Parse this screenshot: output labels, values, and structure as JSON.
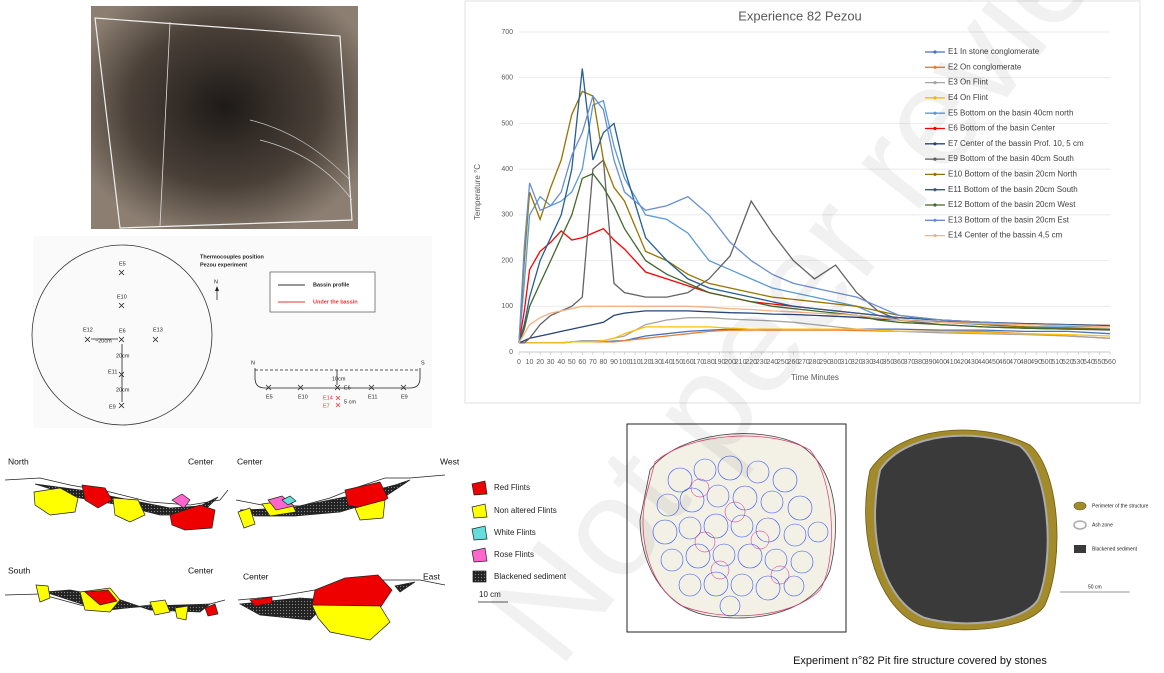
{
  "chart_data": {
    "type": "line",
    "title": "Experience 82 Pezou",
    "x_label": "Time Minutes",
    "y_label": "Temperature °C",
    "x": [
      0,
      5,
      10,
      20,
      30,
      40,
      50,
      60,
      70,
      80,
      90,
      100,
      120,
      140,
      160,
      180,
      200,
      220,
      240,
      260,
      280,
      300,
      320,
      340,
      360,
      400,
      440,
      480,
      520,
      560
    ],
    "xlim": [
      0,
      560
    ],
    "xticks": [
      0,
      10,
      20,
      30,
      40,
      50,
      60,
      70,
      80,
      90,
      100,
      110,
      120,
      130,
      140,
      150,
      160,
      170,
      180,
      190,
      200,
      210,
      220,
      230,
      240,
      250,
      260,
      270,
      280,
      290,
      300,
      310,
      320,
      330,
      340,
      350,
      360,
      370,
      380,
      390,
      400,
      410,
      420,
      430,
      440,
      450,
      460,
      470,
      480,
      490,
      500,
      510,
      520,
      530,
      540,
      550,
      560
    ],
    "ylim": [
      0,
      700
    ],
    "yticks": [
      0,
      100,
      200,
      300,
      400,
      500,
      600,
      700
    ],
    "grid": true,
    "series": [
      {
        "name": "E1 In stone conglomerate",
        "color": "#4472c4",
        "values": [
          20,
          20,
          20,
          20,
          20,
          20,
          22,
          22,
          22,
          22,
          24,
          25,
          35,
          40,
          45,
          48,
          50,
          50,
          50,
          50,
          50,
          50,
          50,
          50,
          50,
          48,
          48,
          45,
          45,
          40
        ]
      },
      {
        "name": "E2 On conglomerate",
        "color": "#ed7d31",
        "values": [
          20,
          20,
          20,
          20,
          20,
          20,
          22,
          22,
          22,
          22,
          22,
          25,
          30,
          35,
          40,
          45,
          48,
          48,
          48,
          48,
          48,
          48,
          47,
          46,
          45,
          45,
          45,
          40,
          35,
          30
        ]
      },
      {
        "name": "E3 On Flint",
        "color": "#a5a5a5",
        "values": [
          20,
          20,
          20,
          20,
          20,
          20,
          22,
          25,
          25,
          25,
          30,
          35,
          60,
          70,
          75,
          75,
          72,
          70,
          68,
          65,
          60,
          55,
          50,
          48,
          45,
          42,
          40,
          38,
          35,
          30
        ]
      },
      {
        "name": "E4 On Flint",
        "color": "#ffc000",
        "values": [
          20,
          20,
          20,
          20,
          20,
          20,
          22,
          22,
          22,
          25,
          30,
          40,
          55,
          55,
          55,
          55,
          52,
          50,
          50,
          50,
          50,
          50,
          50,
          48,
          45,
          45,
          42,
          40,
          38,
          35
        ]
      },
      {
        "name": "E5 Bottom on the basin 40cm north",
        "color": "#5b9bd5",
        "values": [
          20,
          150,
          300,
          340,
          320,
          330,
          350,
          400,
          540,
          550,
          450,
          380,
          300,
          290,
          260,
          200,
          180,
          160,
          140,
          130,
          120,
          110,
          100,
          80,
          70,
          65,
          60,
          55,
          55,
          55
        ]
      },
      {
        "name": "E6 Bottom of the basin Center",
        "color": "#ff0000",
        "values": [
          20,
          90,
          180,
          220,
          240,
          265,
          245,
          250,
          260,
          270,
          245,
          225,
          175,
          160,
          145,
          130,
          120,
          110,
          105,
          100,
          95,
          90,
          85,
          80,
          75,
          70,
          65,
          62,
          60,
          58
        ]
      },
      {
        "name": "E7 Center of the bassin Prof. 10, 5 cm",
        "color": "#264478",
        "values": [
          20,
          25,
          30,
          35,
          40,
          45,
          50,
          55,
          60,
          65,
          80,
          85,
          90,
          90,
          90,
          88,
          86,
          85,
          83,
          82,
          80,
          78,
          76,
          72,
          70,
          66,
          62,
          60,
          58,
          55
        ]
      },
      {
        "name": "E9 Bottom of the basin 40cm South",
        "color": "#636363",
        "values": [
          20,
          20,
          30,
          60,
          80,
          90,
          100,
          120,
          400,
          420,
          150,
          130,
          120,
          120,
          130,
          160,
          210,
          330,
          260,
          200,
          160,
          190,
          130,
          90,
          70,
          60,
          55,
          52,
          50,
          48
        ]
      },
      {
        "name": "E10 Bottom of the basin 20cm North",
        "color": "#997300",
        "values": [
          20,
          200,
          350,
          290,
          360,
          420,
          520,
          570,
          560,
          420,
          360,
          330,
          220,
          200,
          170,
          150,
          140,
          130,
          120,
          115,
          110,
          105,
          100,
          90,
          80,
          70,
          60,
          55,
          52,
          50
        ]
      },
      {
        "name": "E11 Bottom of the basin 20cm South",
        "color": "#255e91",
        "values": [
          20,
          60,
          120,
          200,
          250,
          300,
          400,
          620,
          420,
          480,
          500,
          400,
          250,
          200,
          160,
          140,
          130,
          120,
          110,
          100,
          95,
          90,
          85,
          80,
          75,
          70,
          65,
          62,
          60,
          58
        ]
      },
      {
        "name": "E12 Bottom of the basin 20cm West",
        "color": "#43682b",
        "values": [
          20,
          50,
          100,
          150,
          200,
          250,
          300,
          380,
          390,
          360,
          320,
          270,
          200,
          170,
          150,
          130,
          120,
          110,
          100,
          95,
          90,
          85,
          80,
          70,
          65,
          60,
          55,
          52,
          50,
          50
        ]
      },
      {
        "name": "E13 Bottom of the basin 20cm Est",
        "color": "#698ed0",
        "values": [
          20,
          230,
          370,
          310,
          320,
          350,
          430,
          480,
          560,
          530,
          420,
          350,
          310,
          320,
          340,
          300,
          240,
          200,
          170,
          150,
          140,
          130,
          120,
          100,
          80,
          70,
          65,
          60,
          58,
          55
        ]
      },
      {
        "name": "E14 Center of the bassin 4,5 cm",
        "color": "#f4b183",
        "values": [
          20,
          40,
          60,
          75,
          85,
          90,
          95,
          100,
          100,
          100,
          100,
          100,
          100,
          100,
          100,
          98,
          95,
          93,
          90,
          88,
          85,
          83,
          80,
          75,
          70,
          65,
          62,
          60,
          58,
          55
        ]
      }
    ]
  },
  "thermocouples": {
    "title": "Thermocouples position",
    "subtitle": "Pezou experiment",
    "north": "N",
    "legend": [
      "Bassin profile",
      "Under the bassin"
    ],
    "plan_labels": [
      "E5",
      "E10",
      "E12",
      "~20cm",
      "E6",
      "E13",
      "20cm",
      "E11",
      "20cm",
      "E9"
    ],
    "profile_labels": [
      "N",
      "S",
      "10cm",
      "E5",
      "E10",
      "E6",
      "E11",
      "E9",
      "E14",
      "E7",
      "5 cm"
    ]
  },
  "sections": {
    "labels": [
      "North",
      "Center",
      "Center",
      "West",
      "South",
      "Center",
      "Center",
      "East"
    ],
    "legend": [
      "Red Flints",
      "Non altered Flints",
      "White Flints",
      "Rose Flints",
      "Blackened sediment"
    ],
    "scale": "10 cm"
  },
  "structure": {
    "legend": [
      "Perimeter of the structure",
      "Ash zone",
      "Blackened sediment"
    ],
    "scale": "50 cm",
    "caption": "Experiment n°82 Pit fire structure covered by stones"
  },
  "watermark": "Not peer reviewed"
}
